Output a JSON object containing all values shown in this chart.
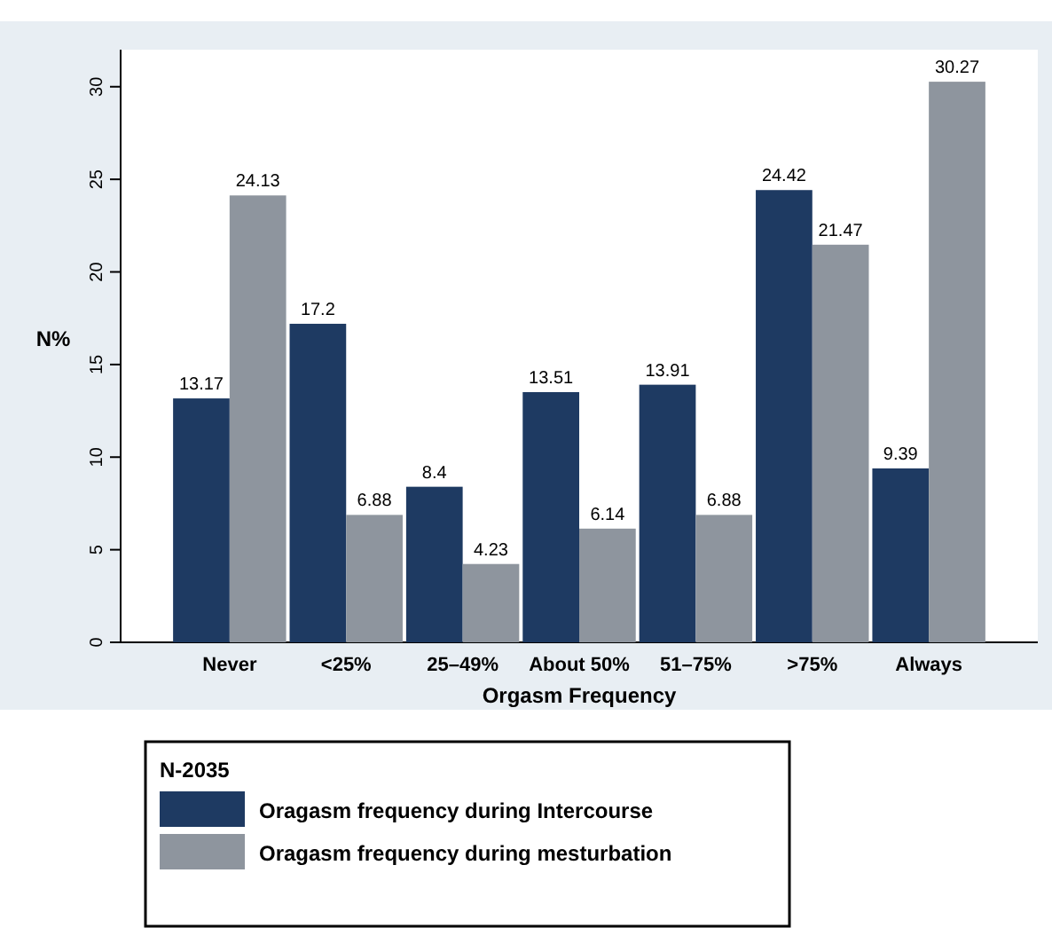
{
  "chart_data": {
    "type": "bar",
    "xlabel": "Orgasm Frequency",
    "ylabel": "N%",
    "legend_title": "N-2035",
    "categories": [
      "Never",
      "<25%",
      "25–49%",
      "About 50%",
      "51–75%",
      ">75%",
      "Always"
    ],
    "series": [
      {
        "name": "Oragasm frequency during Intercourse",
        "color": "#1e3a62",
        "values": [
          13.17,
          17.2,
          8.4,
          13.51,
          13.91,
          24.42,
          9.39
        ]
      },
      {
        "name": "Oragasm frequency during mesturbation",
        "color": "#8e959e",
        "values": [
          24.13,
          6.88,
          4.23,
          6.14,
          6.88,
          21.47,
          30.27
        ]
      }
    ],
    "ylim": [
      0,
      32
    ],
    "yticks": [
      0,
      5,
      10,
      15,
      20,
      25,
      30
    ],
    "data_labels": true,
    "legend": "bottom"
  }
}
